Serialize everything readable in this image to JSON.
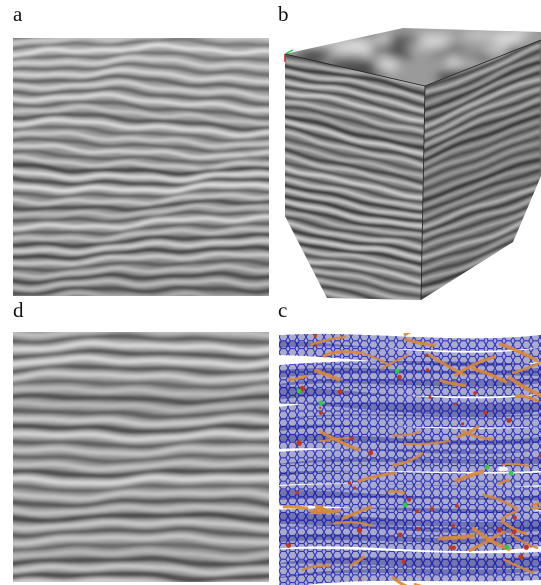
{
  "figure": {
    "panels": [
      {
        "id": "a",
        "label": "a",
        "kind": "2d-stripe-slice"
      },
      {
        "id": "b",
        "label": "b",
        "kind": "3d-stripe-cube"
      },
      {
        "id": "d",
        "label": "d",
        "kind": "2d-stripe-slice-filtered"
      },
      {
        "id": "c",
        "label": "c",
        "kind": "molecular-network-render"
      }
    ]
  },
  "colors": {
    "stripe_dark": "#3c3c3c",
    "stripe_light": "#e6e6e6",
    "stripe_mid": "#8f8f8f",
    "network_blue": "#1c22b8",
    "network_dark_blue": "#0c0f6e",
    "network_orange": "#d8883a",
    "network_red": "#c2361c",
    "network_green": "#2ecc40"
  }
}
